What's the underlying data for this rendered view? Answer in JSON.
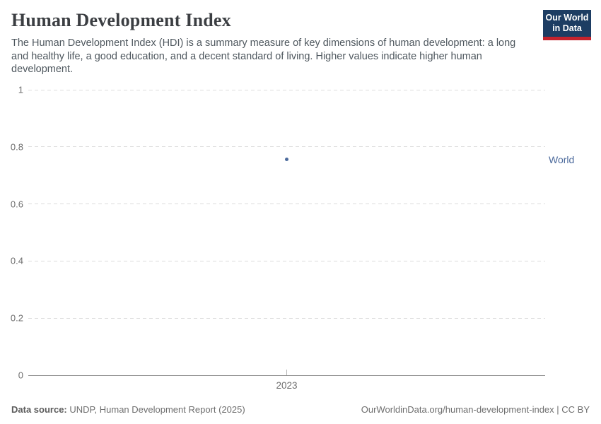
{
  "header": {
    "title": "Human Development Index",
    "subtitle_lines": [
      "The Human Development Index (HDI) is a summary measure of key dimensions of human development: a long",
      "and healthy life, a good education, and a decent standard of living. Higher values indicate higher human",
      "development."
    ]
  },
  "logo": {
    "line1": "Our World",
    "line2": "in Data",
    "bg_color": "#1d3d63",
    "stripe_color": "#c5232d"
  },
  "chart_data": {
    "type": "scatter",
    "title": "Human Development Index",
    "x_ticks": [
      "2023"
    ],
    "y_ticks": [
      0,
      0.2,
      0.4,
      0.6,
      0.8,
      1
    ],
    "ylim": [
      0,
      1
    ],
    "grid": "horizontal-dashed",
    "colors": {
      "gridline": "#dcdcdc",
      "axis": "#8c8c8c"
    },
    "series": [
      {
        "name": "World",
        "color": "#4c6a9c",
        "points": [
          {
            "x": "2023",
            "y": 0.756
          }
        ]
      }
    ]
  },
  "footer": {
    "source_label": "Data source:",
    "source_text": "UNDP, Human Development Report (2025)",
    "link_text": "OurWorldinData.org/human-development-index | CC BY"
  }
}
